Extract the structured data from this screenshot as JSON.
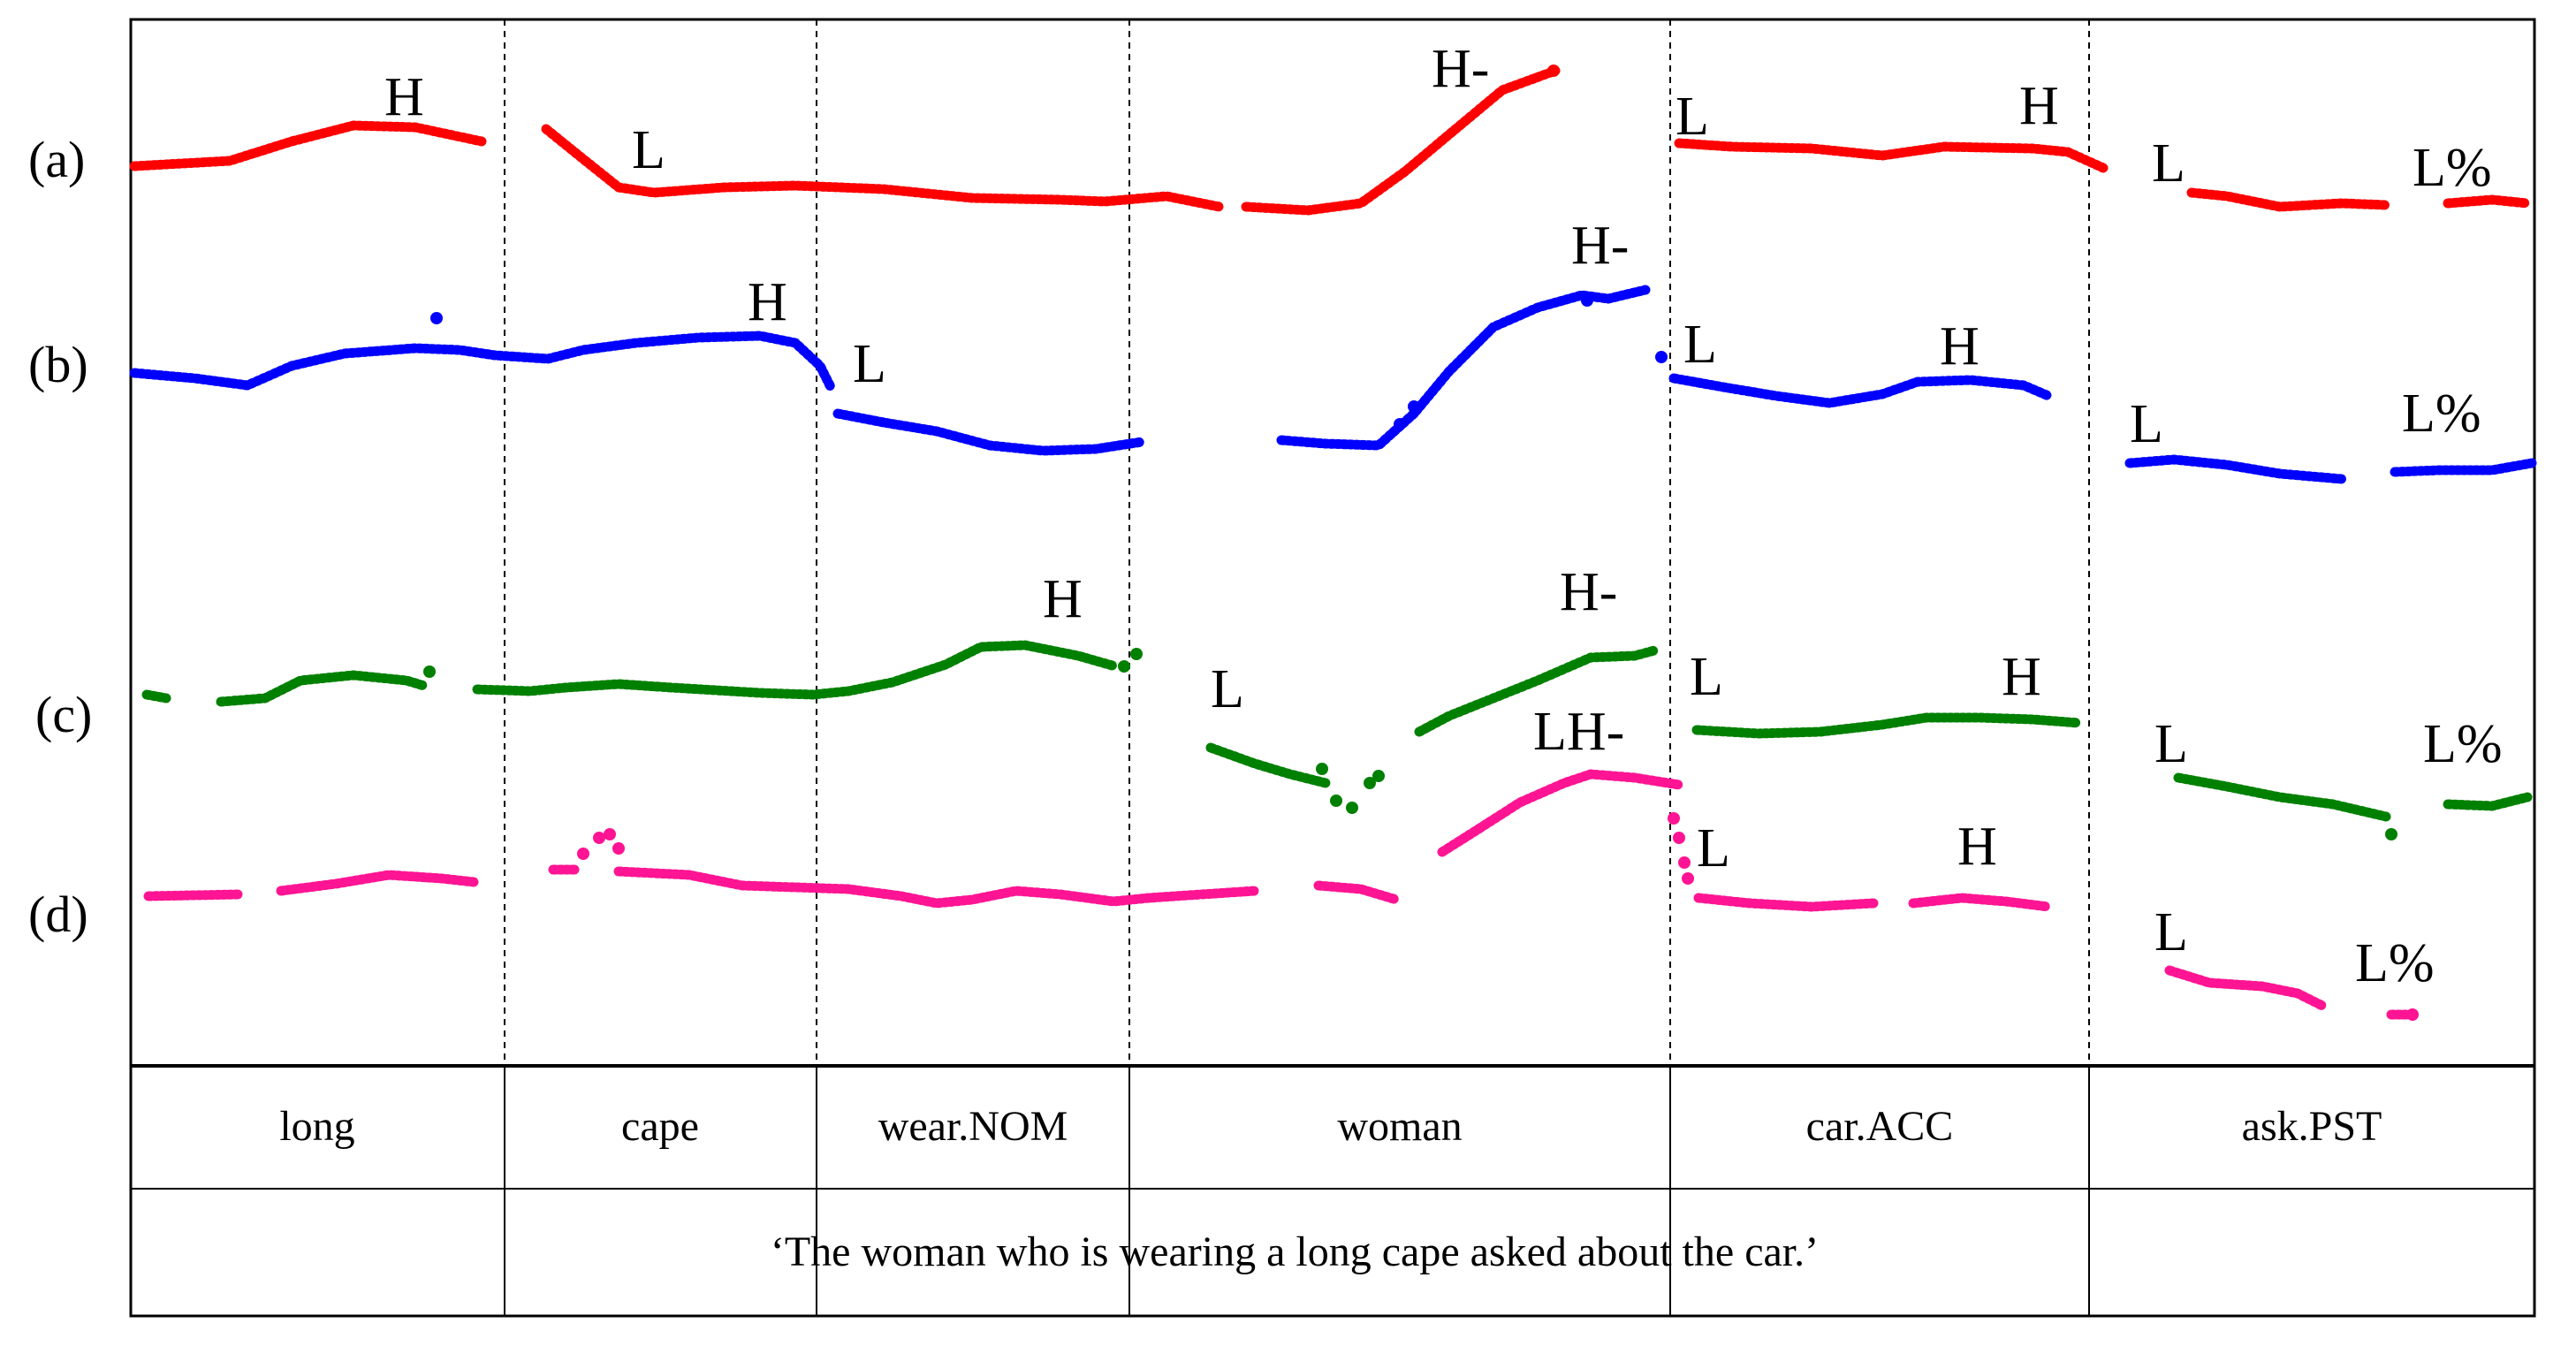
{
  "chart_data": {
    "type": "line",
    "title": "",
    "xlabel": "",
    "ylabel": "",
    "grid": false,
    "row_labels": [
      "(a)",
      "(b)",
      "(c)",
      "(d)"
    ],
    "words": [
      "long",
      "cape",
      "wear.NOM",
      "woman",
      "car.ACC",
      "ask.PST"
    ],
    "translation": "‘The woman who is wearing a long cape asked about the car.’",
    "series": [
      {
        "name": "(a)",
        "color": "#ff0000",
        "tones": [
          {
            "word": "long",
            "label": "H"
          },
          {
            "word": "cape",
            "label": "L"
          },
          {
            "word": "woman",
            "label": "H-"
          },
          {
            "word": "car.ACC",
            "label": "L"
          },
          {
            "word": "car.ACC",
            "label": "H"
          },
          {
            "word": "ask.PST",
            "label": "L"
          },
          {
            "word": "ask.PST",
            "label": "L%"
          }
        ]
      },
      {
        "name": "(b)",
        "color": "#0000ff",
        "tones": [
          {
            "word": "cape",
            "label": "H"
          },
          {
            "word": "wear.NOM",
            "label": "L"
          },
          {
            "word": "woman",
            "label": "H-"
          },
          {
            "word": "car.ACC",
            "label": "L"
          },
          {
            "word": "car.ACC",
            "label": "H"
          },
          {
            "word": "ask.PST",
            "label": "L"
          },
          {
            "word": "ask.PST",
            "label": "L%"
          }
        ]
      },
      {
        "name": "(c)",
        "color": "#008000",
        "tones": [
          {
            "word": "wear.NOM",
            "label": "H"
          },
          {
            "word": "woman",
            "label": "L"
          },
          {
            "word": "woman",
            "label": "H-"
          },
          {
            "word": "car.ACC",
            "label": "L"
          },
          {
            "word": "car.ACC",
            "label": "H"
          },
          {
            "word": "ask.PST",
            "label": "L"
          },
          {
            "word": "ask.PST",
            "label": "L%"
          }
        ]
      },
      {
        "name": "(d)",
        "color": "#ff1493",
        "tones": [
          {
            "word": "woman",
            "label": "LH-"
          },
          {
            "word": "car.ACC",
            "label": "L"
          },
          {
            "word": "car.ACC",
            "label": "H"
          },
          {
            "word": "ask.PST",
            "label": "L"
          },
          {
            "word": "ask.PST",
            "label": "L%"
          }
        ]
      }
    ]
  }
}
